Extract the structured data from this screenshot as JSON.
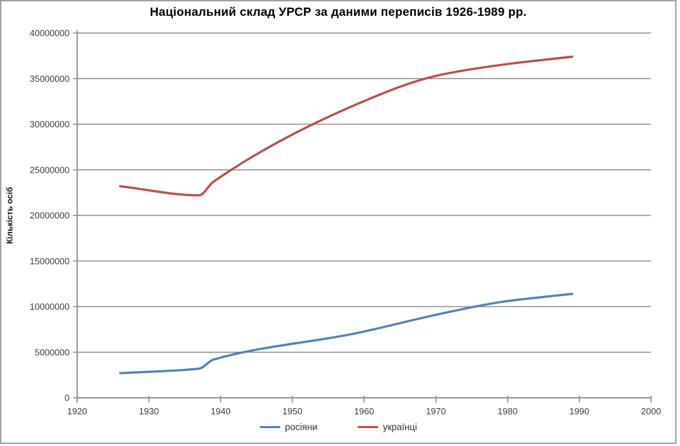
{
  "title": "Національний склад УРСР за даними переписів 1926-1989 рр.",
  "y_axis": {
    "title": "Кількість осіб"
  },
  "colors": {
    "gridline": "#8f8f8f",
    "axis": "#8f8f8f",
    "axis_label": "#3c3c3c",
    "frame_border": "#a0a0a0",
    "title_text": "#000000"
  },
  "chart_data": {
    "type": "line",
    "title": "Національний склад УРСР за даними переписів 1926-1989 рр.",
    "xlabel": "",
    "ylabel": "Кількість осіб",
    "x": [
      1926,
      1937,
      1939,
      1959,
      1970,
      1979,
      1989
    ],
    "series": [
      {
        "name": "росіяни",
        "color": "#4F81BD",
        "values": [
          2700000,
          3200000,
          4200000,
          7100000,
          9100000,
          10500000,
          11400000
        ]
      },
      {
        "name": "українці",
        "color": "#BE4B48",
        "values": [
          23200000,
          22200000,
          23700000,
          32200000,
          35300000,
          36500000,
          37400000
        ]
      }
    ],
    "xlim": [
      1920,
      2000
    ],
    "x_tick_interval": 10,
    "x_tick_labels": [
      "1920",
      "1930",
      "1940",
      "1950",
      "1960",
      "1970",
      "1980",
      "1990",
      "2000"
    ],
    "ylim": [
      0,
      40000000
    ],
    "y_tick_interval": 5000000,
    "y_tick_labels": [
      "0",
      "5000000",
      "10000000",
      "15000000",
      "20000000",
      "25000000",
      "30000000",
      "35000000",
      "40000000"
    ],
    "grid": "horizontal",
    "legend_position": "bottom",
    "line_style": "smoothed"
  }
}
